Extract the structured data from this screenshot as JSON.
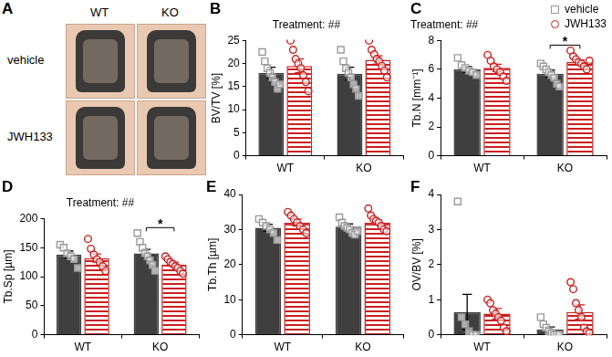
{
  "image_panel": {
    "panel": "A",
    "columns": [
      "WT",
      "KO"
    ],
    "rows": [
      "vehicle",
      "JWH133"
    ]
  },
  "chart_data": [
    {
      "panel": "B",
      "type": "bar",
      "title": "Treatment: ##",
      "categories": [
        "WT",
        "KO"
      ],
      "ylabel": "BV/TV [%]",
      "ylim": [
        0,
        25
      ],
      "yticks": [
        0,
        5,
        10,
        15,
        20,
        25
      ],
      "grid": false,
      "series": [
        {
          "name": "vehicle",
          "color": "#3f3f3f",
          "marker": "square",
          "values": [
            18,
            17.8
          ],
          "errors": [
            1.2,
            1.4
          ],
          "points": [
            [
              22.5,
              20.5,
              19,
              18,
              17,
              16,
              14.5,
              15.5
            ],
            [
              23,
              20.5,
              19,
              18,
              17,
              15.5,
              14.5,
              13
            ]
          ]
        },
        {
          "name": "JWH133",
          "color": "#cc1f1f",
          "marker": "circle",
          "values": [
            19.5,
            20.8
          ],
          "errors": [
            1.5,
            0.9
          ],
          "points": [
            [
              25,
              23,
              21,
              20,
              19,
              17.5,
              16,
              14
            ],
            [
              25,
              23,
              22,
              21,
              20.5,
              19.5,
              18.5,
              17
            ]
          ]
        }
      ]
    },
    {
      "panel": "C",
      "type": "bar",
      "title": "Treatment: ##",
      "categories": [
        "WT",
        "KO"
      ],
      "ylabel": "Tb.N [mm⁻¹]",
      "ylim": [
        0,
        8
      ],
      "yticks": [
        0,
        2,
        4,
        6,
        8
      ],
      "grid": false,
      "legend": "top right",
      "significance": [
        {
          "category": "KO",
          "label": "*"
        }
      ],
      "series": [
        {
          "name": "vehicle",
          "color": "#3f3f3f",
          "marker": "square",
          "values": [
            6.0,
            5.7
          ],
          "errors": [
            0.2,
            0.25
          ],
          "points": [
            [
              6.8,
              6.3,
              6.1,
              5.9,
              5.8,
              5.6
            ],
            [
              6.4,
              6.2,
              6.0,
              5.8,
              5.6,
              5.4,
              5.0,
              4.8
            ]
          ]
        },
        {
          "name": "JWH133",
          "color": "#cc1f1f",
          "marker": "circle",
          "values": [
            6.1,
            6.5
          ],
          "errors": [
            0.25,
            0.15
          ],
          "points": [
            [
              7.0,
              6.6,
              6.2,
              6.0,
              5.8,
              5.5,
              5.2
            ],
            [
              7.3,
              6.9,
              6.7,
              6.5,
              6.4,
              6.2,
              6.0,
              6.6
            ]
          ]
        }
      ]
    },
    {
      "panel": "D",
      "type": "bar",
      "title": "Treatment: ##",
      "categories": [
        "WT",
        "KO"
      ],
      "ylabel": "Tb.Sp [µm]",
      "ylim": [
        0,
        200
      ],
      "yticks": [
        0,
        50,
        100,
        150,
        200
      ],
      "grid": false,
      "significance": [
        {
          "category": "KO",
          "label": "*"
        }
      ],
      "series": [
        {
          "name": "vehicle",
          "color": "#3f3f3f",
          "marker": "square",
          "values": [
            138,
            140
          ],
          "errors": [
            6,
            7
          ],
          "points": [
            [
              155,
              150,
              140,
              135,
              130,
              115
            ],
            [
              175,
              160,
              150,
              140,
              135,
              128,
              120,
              110
            ]
          ]
        },
        {
          "name": "JWH133",
          "color": "#cc1f1f",
          "marker": "circle",
          "values": [
            132,
            121
          ],
          "errors": [
            7,
            4
          ],
          "points": [
            [
              165,
              148,
              138,
              130,
              125,
              118,
              110
            ],
            [
              135,
              130,
              125,
              122,
              118,
              115,
              110,
              105
            ]
          ]
        }
      ]
    },
    {
      "panel": "E",
      "type": "bar",
      "categories": [
        "WT",
        "KO"
      ],
      "ylabel": "Tb.Th [µm]",
      "ylim": [
        0,
        40
      ],
      "yticks": [
        0,
        10,
        20,
        30,
        40
      ],
      "grid": false,
      "series": [
        {
          "name": "vehicle",
          "color": "#3f3f3f",
          "marker": "square",
          "values": [
            30.5,
            30.8
          ],
          "errors": [
            1,
            0.8
          ],
          "points": [
            [
              33,
              32,
              31,
              30,
              29,
              27
            ],
            [
              33.5,
              32,
              31,
              30.5,
              30,
              29,
              28.5,
              29.5
            ]
          ]
        },
        {
          "name": "JWH133",
          "color": "#cc1f1f",
          "marker": "circle",
          "values": [
            32,
            32
          ],
          "errors": [
            1,
            0.7
          ],
          "points": [
            [
              35,
              34,
              33,
              32,
              31,
              30,
              29
            ],
            [
              36,
              34,
              33,
              32.5,
              32,
              31,
              30,
              29.5
            ]
          ]
        }
      ]
    },
    {
      "panel": "F",
      "type": "bar",
      "categories": [
        "WT",
        "KO"
      ],
      "ylabel": "OV/BV [%]",
      "ylim": [
        0,
        4
      ],
      "yticks": [
        0,
        1,
        2,
        3,
        4
      ],
      "grid": false,
      "series": [
        {
          "name": "vehicle",
          "color": "#3f3f3f",
          "marker": "square",
          "values": [
            0.65,
            0.15
          ],
          "errors": [
            0.5,
            0.07
          ],
          "points": [
            [
              3.8,
              0.5,
              0.3,
              0.1,
              0,
              0
            ],
            [
              0.5,
              0.3,
              0.2,
              0.1,
              0.05,
              0,
              0,
              0
            ]
          ]
        },
        {
          "name": "JWH133",
          "color": "#cc1f1f",
          "marker": "circle",
          "values": [
            0.6,
            0.65
          ],
          "errors": [
            0.15,
            0.2
          ],
          "points": [
            [
              1.0,
              0.9,
              0.7,
              0.6,
              0.5,
              0.4,
              0.2,
              0.1
            ],
            [
              1.5,
              1.3,
              0.9,
              0.7,
              0.5,
              0.2,
              0.1,
              0.05
            ]
          ]
        }
      ]
    }
  ]
}
